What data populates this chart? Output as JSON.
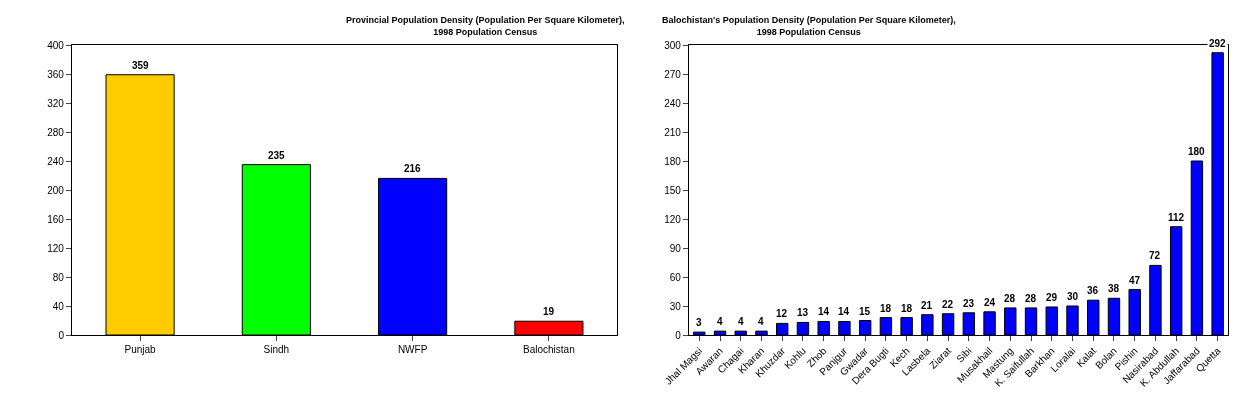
{
  "chart_data": [
    {
      "type": "bar",
      "title": "Provincial Population Density (Population Per Square Kilometer),\n1998 Population Census",
      "categories": [
        "Punjab",
        "Sindh",
        "NWFP",
        "Balochistan"
      ],
      "values": [
        359,
        235,
        216,
        19
      ],
      "colors": [
        "#ffcc00",
        "#00ff00",
        "#0000ff",
        "#ff0000"
      ],
      "ylim": [
        0,
        400
      ],
      "yticks": [
        0,
        40,
        80,
        120,
        160,
        200,
        240,
        280,
        320,
        360,
        400
      ],
      "data_labels": true
    },
    {
      "type": "bar",
      "title": "Balochistan's Population Density (Population Per Square Kilometer),\n1998 Population Census",
      "categories": [
        "Jhal Magsi",
        "Awaran",
        "Chagai",
        "Kharan",
        "Khuzdar",
        "Kohlu",
        "Zhob",
        "Panjgur",
        "Gwadar",
        "Dera Bugti",
        "Kech",
        "Lasbela",
        "Ziarat",
        "Sibi",
        "Musakhail",
        "Mastung",
        "K. Saifullah",
        "Barkhan",
        "Loralai",
        "Kalat",
        "Bolan",
        "Pishin",
        "Nasirabad",
        "K. Abdullah",
        "Jaffarabad",
        "Quetta"
      ],
      "values": [
        3,
        4,
        4,
        4,
        12,
        13,
        14,
        14,
        15,
        18,
        18,
        21,
        22,
        23,
        24,
        28,
        28,
        29,
        30,
        36,
        38,
        47,
        72,
        112,
        180,
        292
      ],
      "color": "#0000ff",
      "ylim": [
        0,
        300
      ],
      "yticks": [
        0,
        30,
        60,
        90,
        120,
        150,
        180,
        210,
        240,
        270,
        300
      ],
      "data_labels": true
    }
  ]
}
